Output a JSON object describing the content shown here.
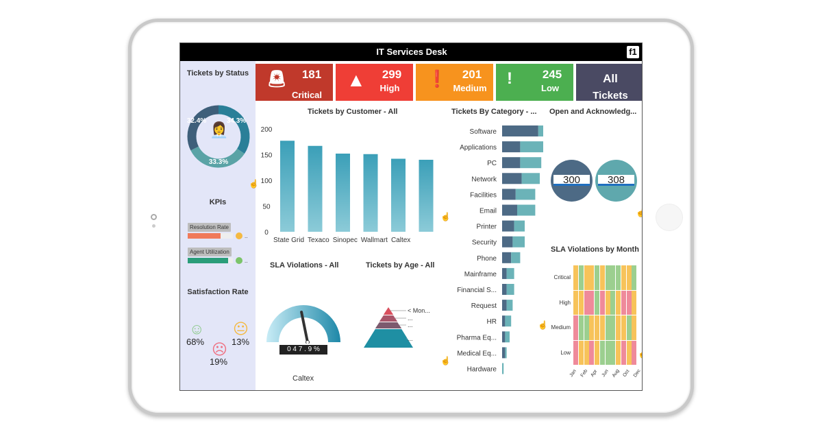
{
  "app": {
    "title": "IT Services Desk",
    "logo": "fi"
  },
  "tiles": [
    {
      "value": "181",
      "label": "Critical",
      "color": "#c0392b",
      "icon": "siren-icon"
    },
    {
      "value": "299",
      "label": "High",
      "color": "#ef3e36",
      "icon": "warning-triangle-icon"
    },
    {
      "value": "201",
      "label": "Medium",
      "color": "#f7931e",
      "icon": "exclamation-circle-icon"
    },
    {
      "value": "245",
      "label": "Low",
      "color": "#4caf50",
      "icon": "exclamation-icon"
    },
    {
      "value": "All",
      "label": "Tickets",
      "color": "#4a4a63"
    }
  ],
  "sidebar": {
    "status_title": "Tickets by Status",
    "status_donut": [
      {
        "label": "34.3%",
        "value": 34.3,
        "color": "#2a7f98"
      },
      {
        "label": "33.3%",
        "value": 33.3,
        "color": "#5aa3a6"
      },
      {
        "label": "32.4%",
        "value": 32.4,
        "color": "#3e5f7a"
      }
    ],
    "kpis_title": "KPIs",
    "kpis": [
      {
        "label": "Resolution Rate",
        "value": 0.72,
        "color": "#f07a5a",
        "dot": "#f4b942",
        "more": ".."
      },
      {
        "label": "Agent Utilization",
        "value": 0.9,
        "color": "#2a9d7a",
        "dot": "#7cc46a",
        "more": ".."
      }
    ],
    "satisfaction_title": "Satisfaction Rate",
    "satisfaction": {
      "happy": "68%",
      "neutral": "13%",
      "sad": "19%"
    }
  },
  "chart_data": [
    {
      "type": "bar",
      "title": "Tickets by Customer - All",
      "categories": [
        "State Grid",
        "Texaco",
        "Sinopec",
        "Wallmart",
        "Caltex",
        ""
      ],
      "values": [
        177,
        167,
        152,
        151,
        142,
        140
      ],
      "ylim": [
        0,
        200
      ],
      "yticks": [
        "0",
        "50",
        "100",
        "150",
        "200"
      ]
    },
    {
      "type": "bar",
      "orientation": "horizontal",
      "stacked": true,
      "title": "Tickets By Category - ...",
      "categories": [
        "Software",
        "Applications",
        "PC",
        "Network",
        "Facilities",
        "Email",
        "Printer",
        "Security",
        "Phone",
        "Mainframe",
        "Financial S...",
        "Request",
        "HR",
        "Pharma Eq...",
        "Medical Eq...",
        "Hardware"
      ],
      "series": [
        {
          "values": [
            24,
            12,
            12,
            13,
            9,
            10,
            8,
            7,
            6,
            3,
            3,
            3,
            2,
            2,
            2,
            0
          ],
          "color": "#4d6a85"
        },
        {
          "values": [
            22,
            17,
            14,
            12,
            13,
            12,
            7,
            8,
            6,
            5,
            5,
            4,
            4,
            3,
            1,
            1
          ],
          "color": "#6bb3b8"
        }
      ]
    },
    {
      "type": "heatmap",
      "title": "SLA Violations by Month",
      "rows": [
        "Critical",
        "High",
        "Medium",
        "Low"
      ],
      "x_labels": [
        "Jan",
        "Feb",
        "Apr",
        "Jun",
        "Aug",
        "Oct",
        "Dec"
      ],
      "levels": {
        "1": "#9ccf8f",
        "2": "#f7c35a",
        "3": "#ef8a9a"
      },
      "values": [
        [
          2,
          1,
          2,
          2,
          1,
          2,
          1,
          1,
          1,
          2,
          2,
          1
        ],
        [
          2,
          2,
          3,
          3,
          1,
          3,
          2,
          1,
          2,
          3,
          3,
          2
        ],
        [
          3,
          1,
          1,
          2,
          2,
          2,
          1,
          1,
          2,
          2,
          1,
          2
        ],
        [
          3,
          2,
          2,
          3,
          2,
          1,
          1,
          1,
          2,
          3,
          2,
          3
        ]
      ]
    }
  ],
  "open_ack": {
    "title": "Open and Acknowledg...",
    "open": "300",
    "ack": "308"
  },
  "sla": {
    "title": "SLA Violations - All",
    "value": 47.9,
    "readout": "0 4 7 . 9 %",
    "caption": "Caltex"
  },
  "age": {
    "title": "Tickets by Age - All",
    "labels": [
      "< Mon...",
      "...",
      "...",
      "..."
    ]
  }
}
